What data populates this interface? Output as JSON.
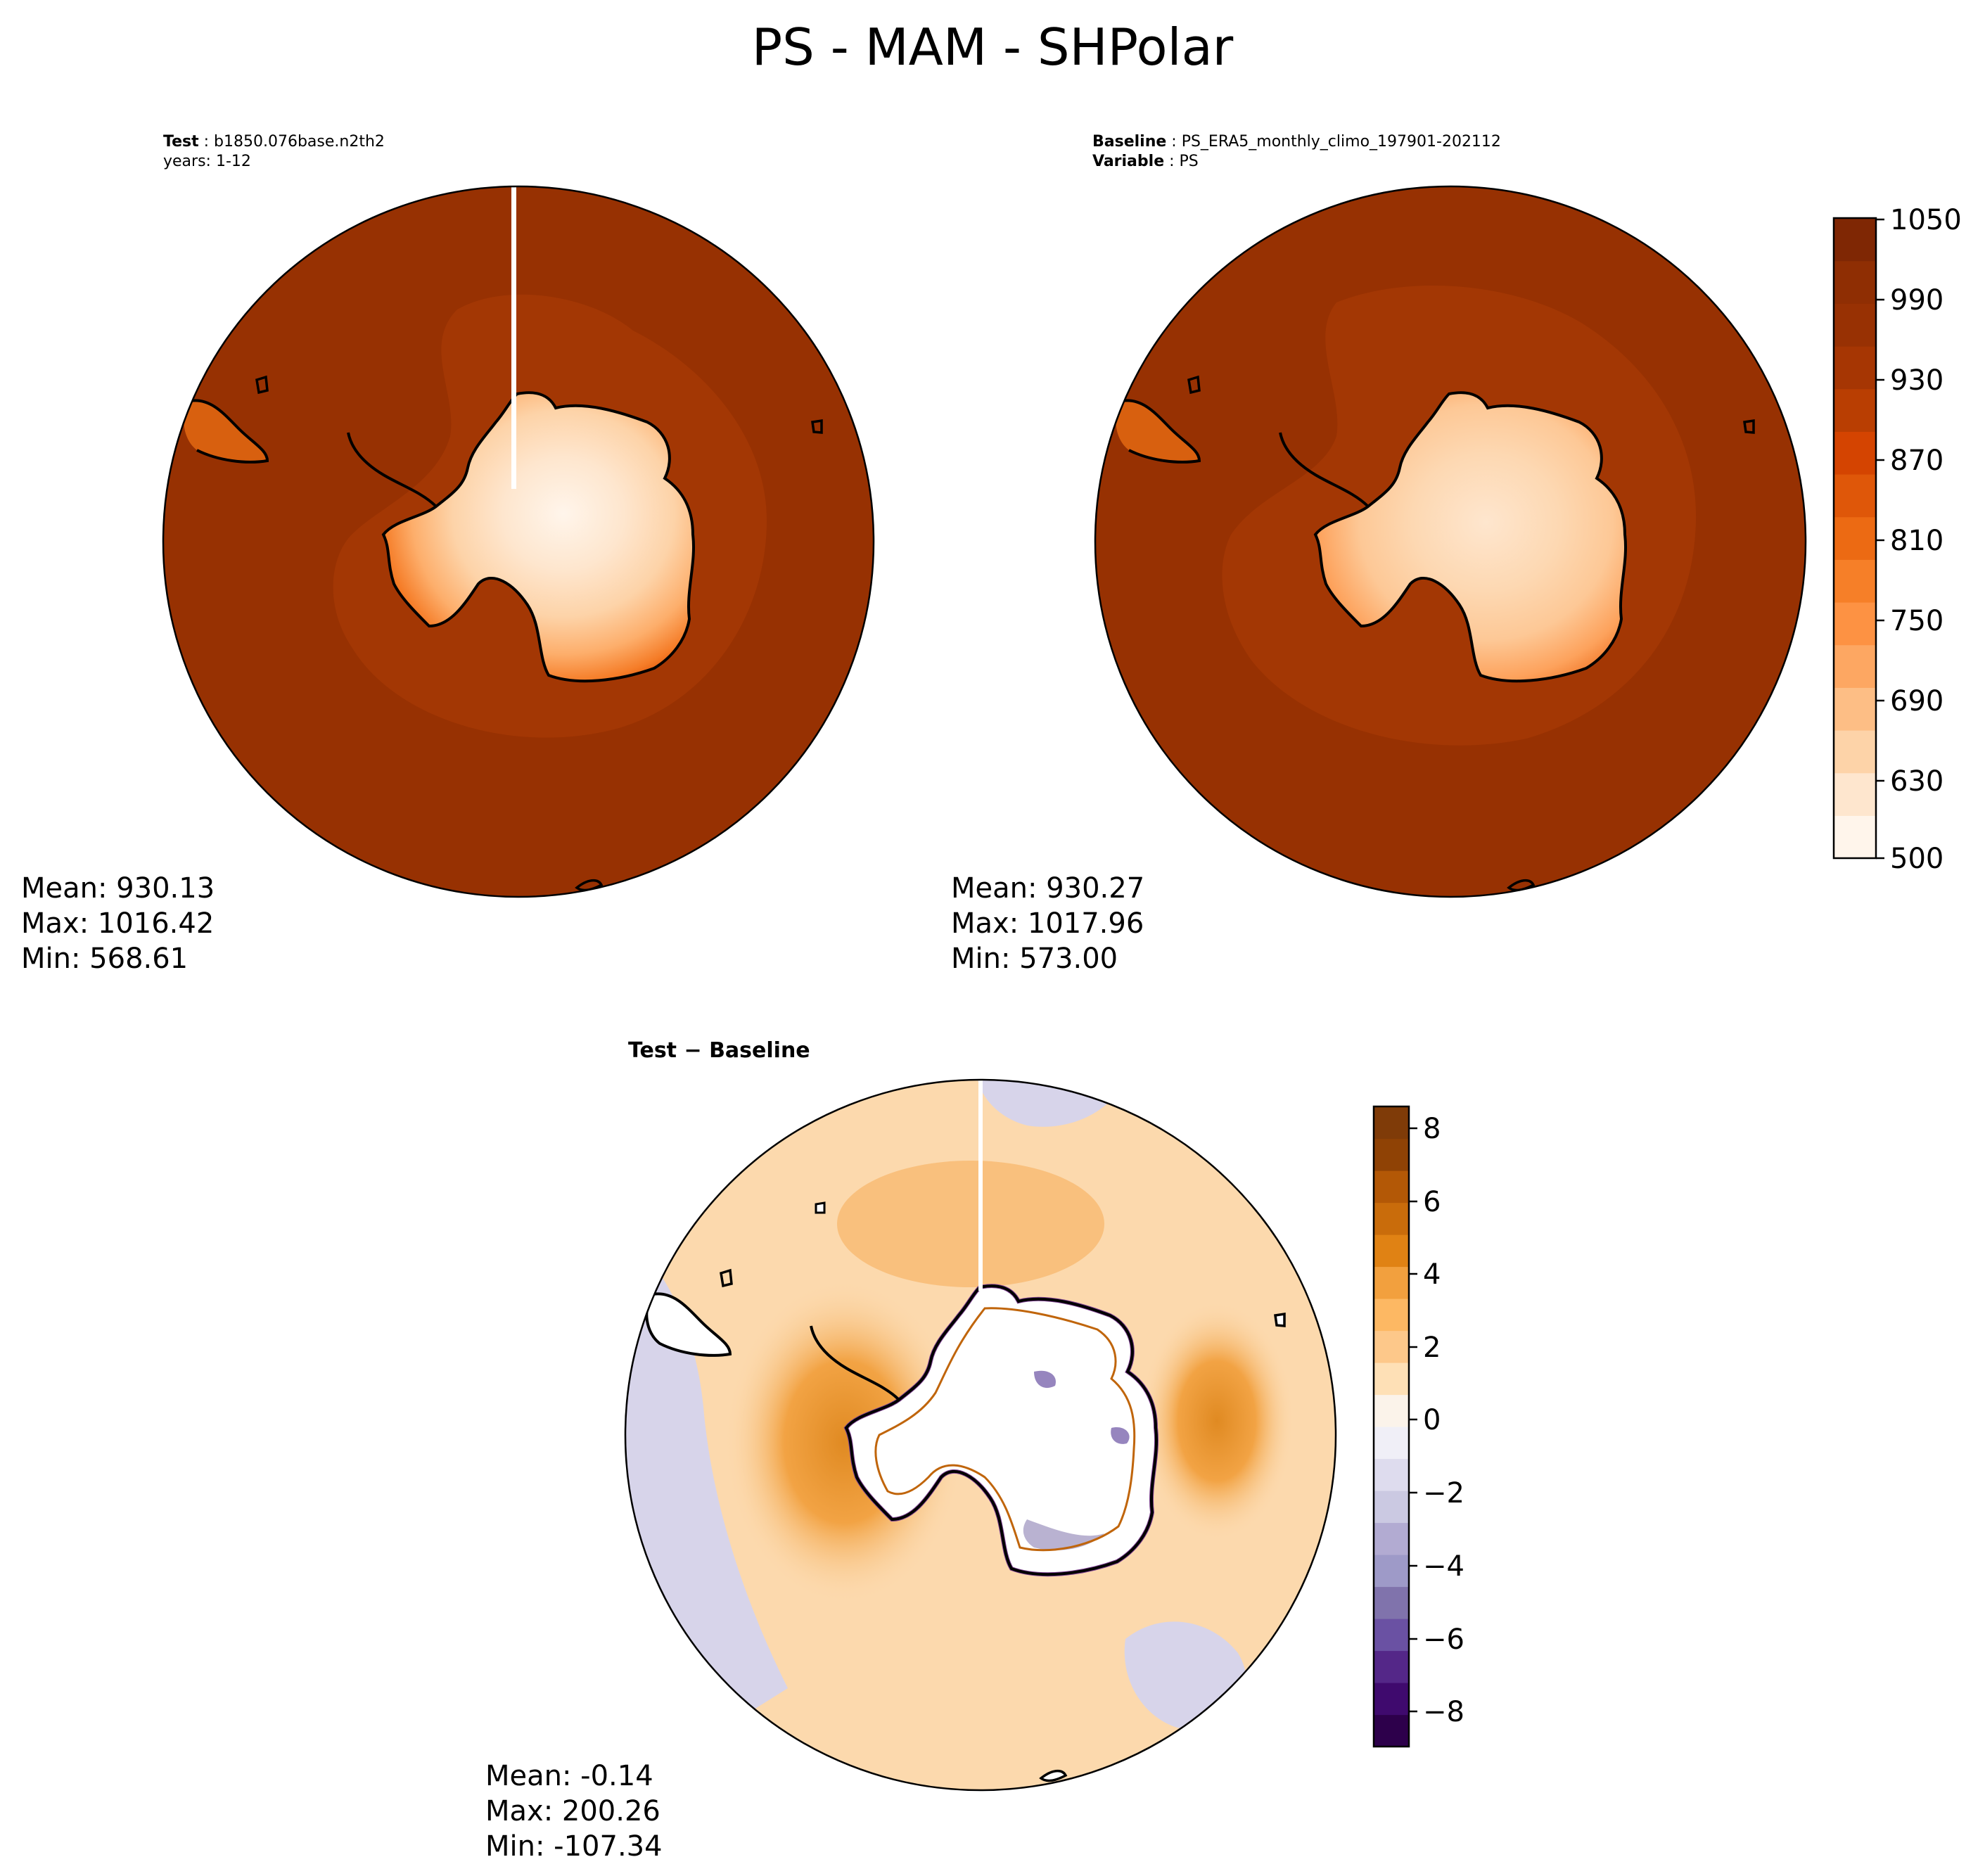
{
  "figure": {
    "title": "PS - MAM - SHPolar"
  },
  "panels": {
    "test": {
      "label_bold": "Test",
      "label_value": "b1850.076base.n2th2",
      "line2": "years: 1-12",
      "stats": {
        "mean": "Mean: 930.13",
        "max": "Max: 1016.42",
        "min": "Min: 568.61"
      }
    },
    "baseline": {
      "label_bold": "Baseline",
      "label_value": "PS_ERA5_monthly_climo_197901-202112",
      "line2_bold": "Variable",
      "line2_value": "PS",
      "stats": {
        "mean": "Mean: 930.27",
        "max": "Max: 1017.96",
        "min": "Min: 573.00"
      }
    },
    "diff": {
      "title_left": "Test",
      "title_sep": " − ",
      "title_right": "Baseline",
      "stats": {
        "mean": "Mean: -0.14",
        "max": "Max: 200.26",
        "min": "Min: -107.34"
      }
    }
  },
  "colorbars": {
    "abs": {
      "ticks": [
        "1050",
        "990",
        "930",
        "870",
        "810",
        "750",
        "690",
        "630",
        "500"
      ],
      "colors": [
        "#fff5eb",
        "#fee6ce",
        "#fdd3a8",
        "#fdbe85",
        "#fda762",
        "#fd9243",
        "#f67f28",
        "#ec6a13",
        "#df5709",
        "#d44401",
        "#b93e02",
        "#a63603",
        "#983103",
        "#8f2e03",
        "#7f2704"
      ]
    },
    "diff": {
      "ticks": [
        "8",
        "6",
        "4",
        "2",
        "0",
        "−2",
        "−4",
        "−6",
        "−8"
      ],
      "colors": [
        "#2d004b",
        "#3f0a6e",
        "#542788",
        "#6a51a3",
        "#8073ac",
        "#9e9ac8",
        "#b2abd2",
        "#cbc9e2",
        "#dedcee",
        "#f0eff7",
        "#fbf3ea",
        "#fee0b6",
        "#fdc88a",
        "#fdb863",
        "#f2a03e",
        "#e08214",
        "#c96c0b",
        "#b35806",
        "#8f4205",
        "#7f3b08"
      ]
    }
  },
  "map_colors": {
    "ocean_far": "#973102",
    "ocean_mid": "#a33704",
    "ocean_near": "#b93e02",
    "diff_ocean": "#fcd9ad",
    "diff_warm": "#f6ac55",
    "diff_cool": "#d7d4ea"
  }
}
